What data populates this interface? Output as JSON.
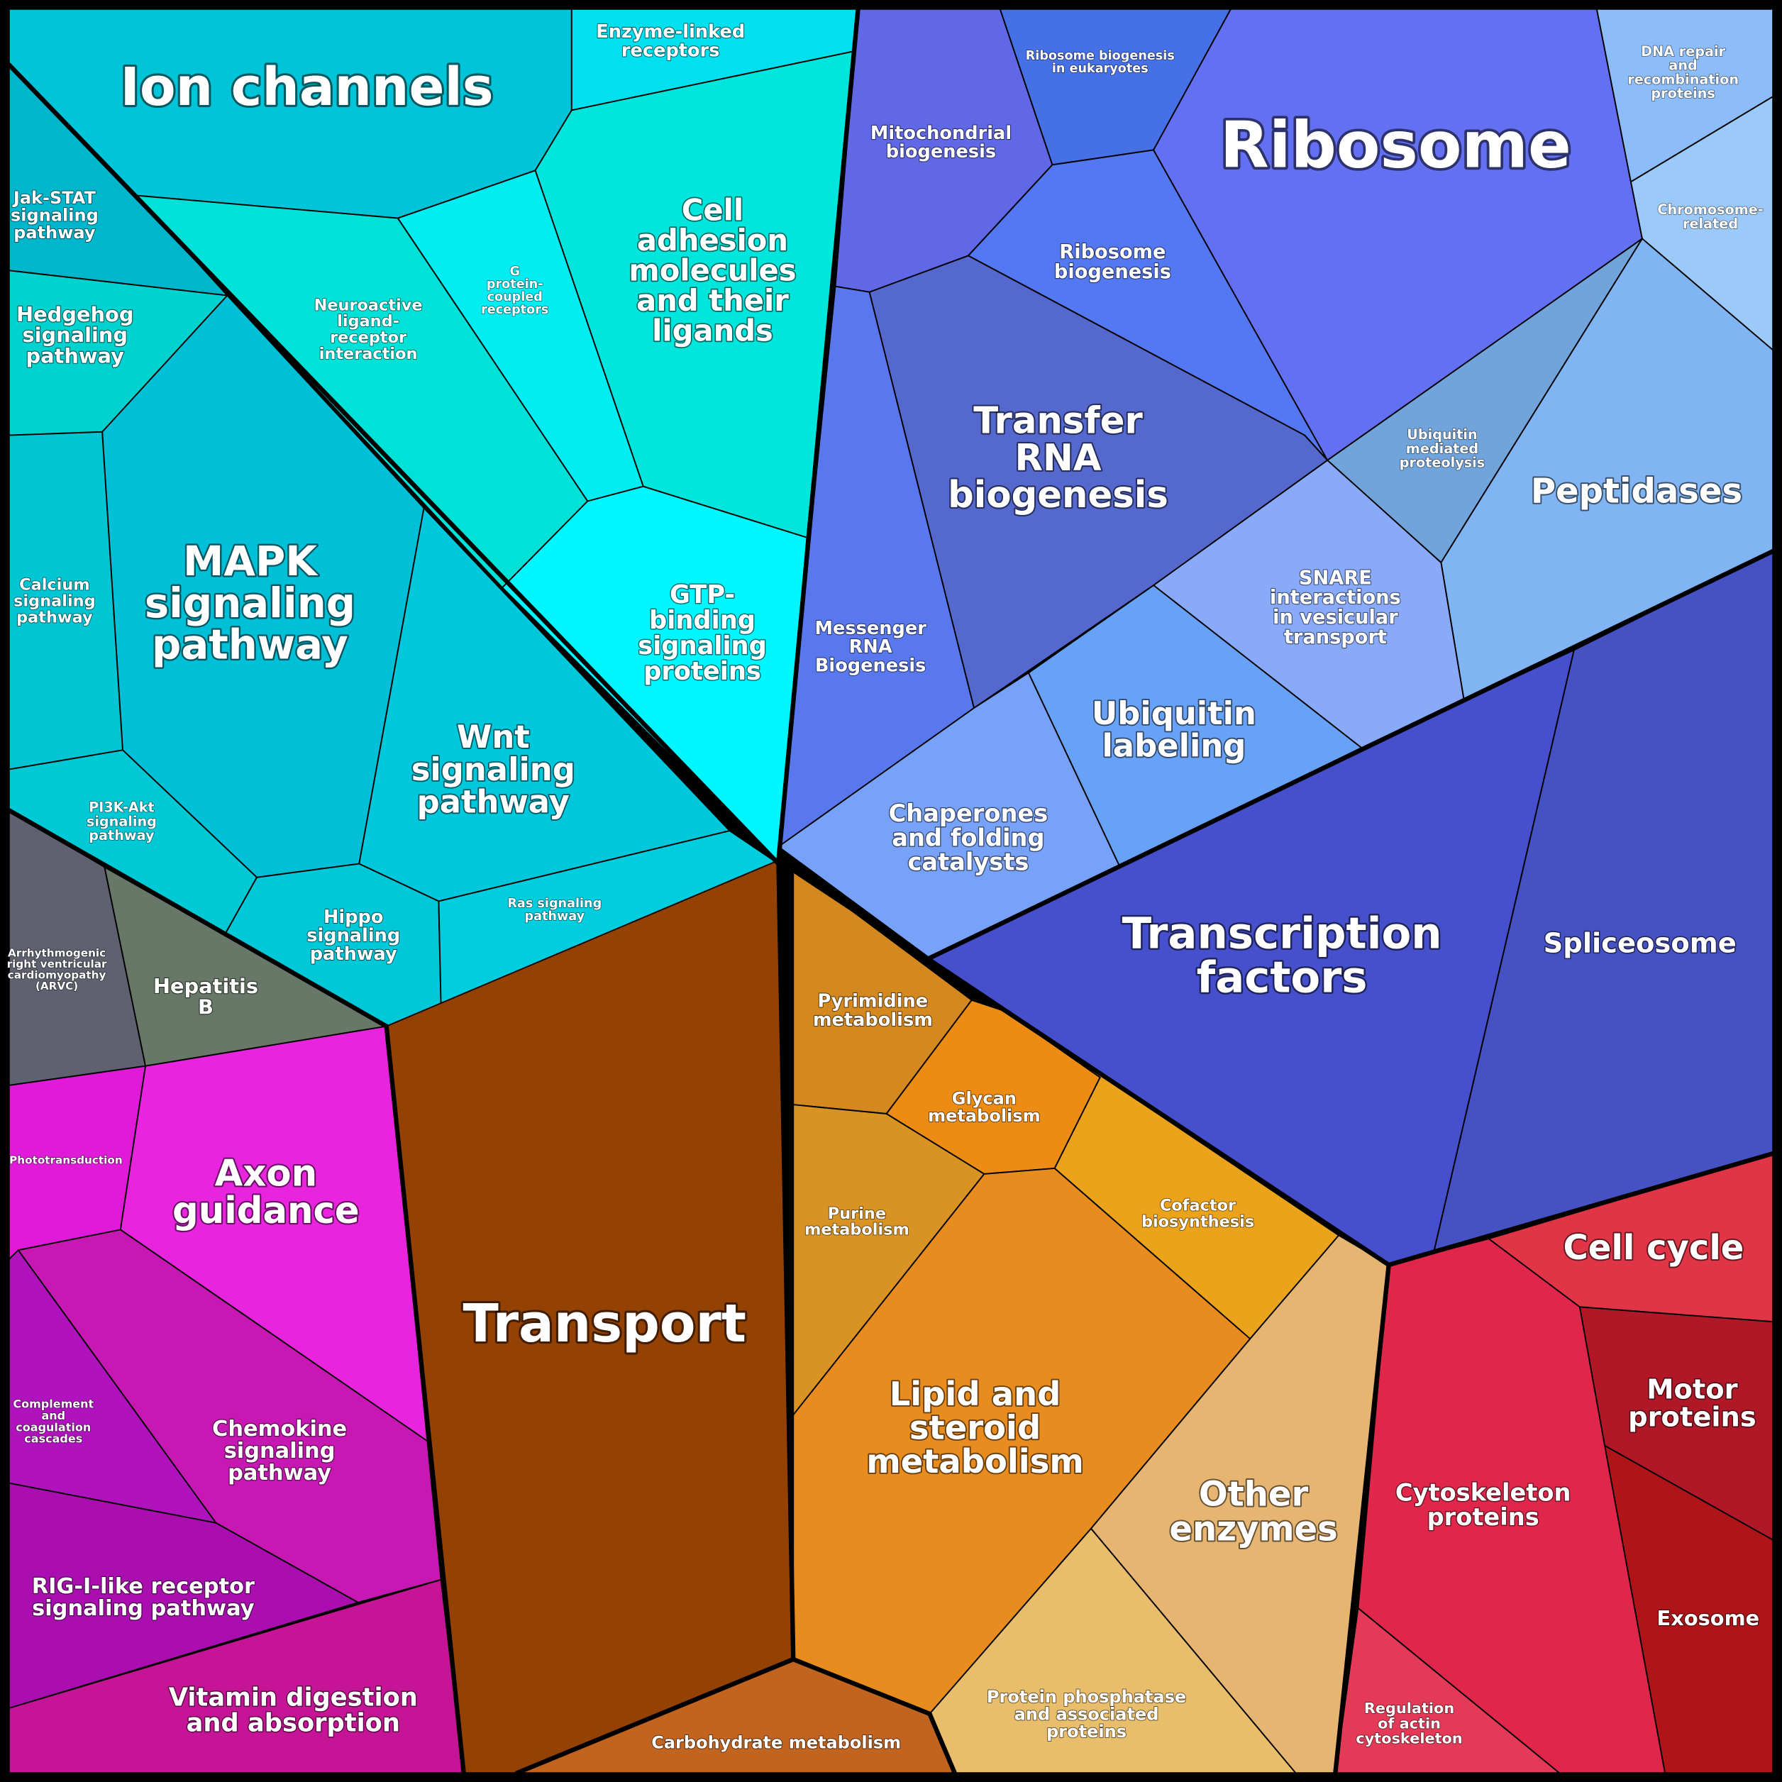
{
  "nodes": [
    {
      "label": [
        "Ion channels"
      ],
      "color": "#00c5d8"
    },
    {
      "label": [
        "Enzyme-linked",
        "receptors"
      ],
      "color": "#00e0ee"
    },
    {
      "label": [
        "Cell",
        "adhesion",
        "molecules",
        "and their",
        "ligands"
      ],
      "color": "#00e6dc"
    },
    {
      "label": [
        "G",
        "protein-",
        "coupled",
        "receptors"
      ],
      "color": "#00eef2"
    },
    {
      "label": [
        "Neuroactive",
        "ligand-",
        "receptor",
        "interaction"
      ],
      "color": "#00e2d8"
    },
    {
      "label": [
        "GTP-",
        "binding",
        "signaling",
        "proteins"
      ],
      "color": "#00f7ff"
    },
    {
      "label": [
        "Jak-STAT",
        "signaling",
        "pathway"
      ],
      "color": "#00b6cc"
    },
    {
      "label": [
        "Hedgehog",
        "signaling",
        "pathway"
      ],
      "color": "#00d2cf"
    },
    {
      "label": [
        "Calcium",
        "signaling",
        "pathway"
      ],
      "color": "#00c6d3"
    },
    {
      "label": [
        "MAPK",
        "signaling",
        "pathway"
      ],
      "color": "#00c0d8"
    },
    {
      "label": [
        "Wnt",
        "signaling",
        "pathway"
      ],
      "color": "#00c8dc"
    },
    {
      "label": [
        "PI3K-Akt",
        "signaling",
        "pathway"
      ],
      "color": "#00c9d6"
    },
    {
      "label": [
        "Hippo",
        "signaling",
        "pathway"
      ],
      "color": "#00c8d8"
    },
    {
      "label": [
        "Ras signaling",
        "pathway"
      ],
      "color": "#00cddd"
    },
    {
      "label": [
        "Arrhythmogenic",
        "right ventricular",
        "cardiomyopathy",
        "(ARVC)"
      ],
      "color": "#5f6170"
    },
    {
      "label": [
        "Hepatitis",
        "B"
      ],
      "color": "#687868"
    },
    {
      "label": [
        "Phototransduction"
      ],
      "color": "#e01ad8"
    },
    {
      "label": [
        "Axon",
        "guidance"
      ],
      "color": "#e824de"
    },
    {
      "label": [
        "Chemokine",
        "signaling",
        "pathway"
      ],
      "color": "#c818b4"
    },
    {
      "label": [
        "Complement",
        "and",
        "coagulation",
        "cascades"
      ],
      "color": "#b012bd"
    },
    {
      "label": [
        "RIG-I-like receptor",
        "signaling pathway"
      ],
      "color": "#ab0eb0"
    },
    {
      "label": [
        "Vitamin digestion",
        "and absorption"
      ],
      "color": "#c61497"
    },
    {
      "label": [
        "Transport"
      ],
      "color": "#934204"
    },
    {
      "label": [
        "Carbohydrate metabolism"
      ],
      "color": "#c06420"
    },
    {
      "label": [
        "Pyrimidine",
        "metabolism"
      ],
      "color": "#d48820"
    },
    {
      "label": [
        "Glycan",
        "metabolism"
      ],
      "color": "#ec8c14"
    },
    {
      "label": [
        "Purine",
        "metabolism"
      ],
      "color": "#d99322"
    },
    {
      "label": [
        "Lipid and",
        "steroid",
        "metabolism"
      ],
      "color": "#e98c20"
    },
    {
      "label": [
        "Cofactor",
        "biosynthesis"
      ],
      "color": "#eca31c"
    },
    {
      "label": [
        "Other",
        "enzymes"
      ],
      "color": "#e6b571"
    },
    {
      "label": [
        "Protein phosphatase",
        "and associated",
        "proteins"
      ],
      "color": "#e8bd6b"
    },
    {
      "label": [
        "Cell cycle"
      ],
      "color": "#e03546"
    },
    {
      "label": [
        "Motor",
        "proteins"
      ],
      "color": "#b01828"
    },
    {
      "label": [
        "Exosome"
      ],
      "color": "#ae1418"
    },
    {
      "label": [
        "Cytoskeleton",
        "proteins"
      ],
      "color": "#e0264a"
    },
    {
      "label": [
        "Regulation",
        "of actin",
        "cytoskeleton"
      ],
      "color": "#e43a58"
    },
    {
      "label": [
        "Mitochondrial",
        "biogenesis"
      ],
      "color": "#6068e6"
    },
    {
      "label": [
        "Ribosome biogenesis",
        "in eukaryotes"
      ],
      "color": "#4670e6"
    },
    {
      "label": [
        "Ribosome"
      ],
      "color": "#6470f2"
    },
    {
      "label": [
        "Ribosome",
        "biogenesis"
      ],
      "color": "#5478f2"
    },
    {
      "label": [
        "Transfer",
        "RNA",
        "biogenesis"
      ],
      "color": "#5468ce"
    },
    {
      "label": [
        "Messenger",
        "RNA",
        "Biogenesis"
      ],
      "color": "#5a78ee"
    },
    {
      "label": [
        "DNA repair",
        "and",
        "recombination",
        "proteins"
      ],
      "color": "#8cbdf8"
    },
    {
      "label": [
        "Chromosome-",
        "related"
      ],
      "color": "#9ccaf8"
    },
    {
      "label": [
        "Ubiquitin",
        "mediated",
        "proteolysis"
      ],
      "color": "#70a4da"
    },
    {
      "label": [
        "Peptidases"
      ],
      "color": "#80b4f2"
    },
    {
      "label": [
        "SNARE",
        "interactions",
        "in vesicular",
        "transport"
      ],
      "color": "#88aaf8"
    },
    {
      "label": [
        "Ubiquitin",
        "labeling"
      ],
      "color": "#68a2f6"
    },
    {
      "label": [
        "Chaperones",
        "and folding",
        "catalysts"
      ],
      "color": "#78a2f8"
    },
    {
      "label": [
        "Transcription",
        "factors"
      ],
      "color": "#4650cc"
    },
    {
      "label": [
        "Spliceosome"
      ],
      "color": "#4652c4"
    }
  ]
}
